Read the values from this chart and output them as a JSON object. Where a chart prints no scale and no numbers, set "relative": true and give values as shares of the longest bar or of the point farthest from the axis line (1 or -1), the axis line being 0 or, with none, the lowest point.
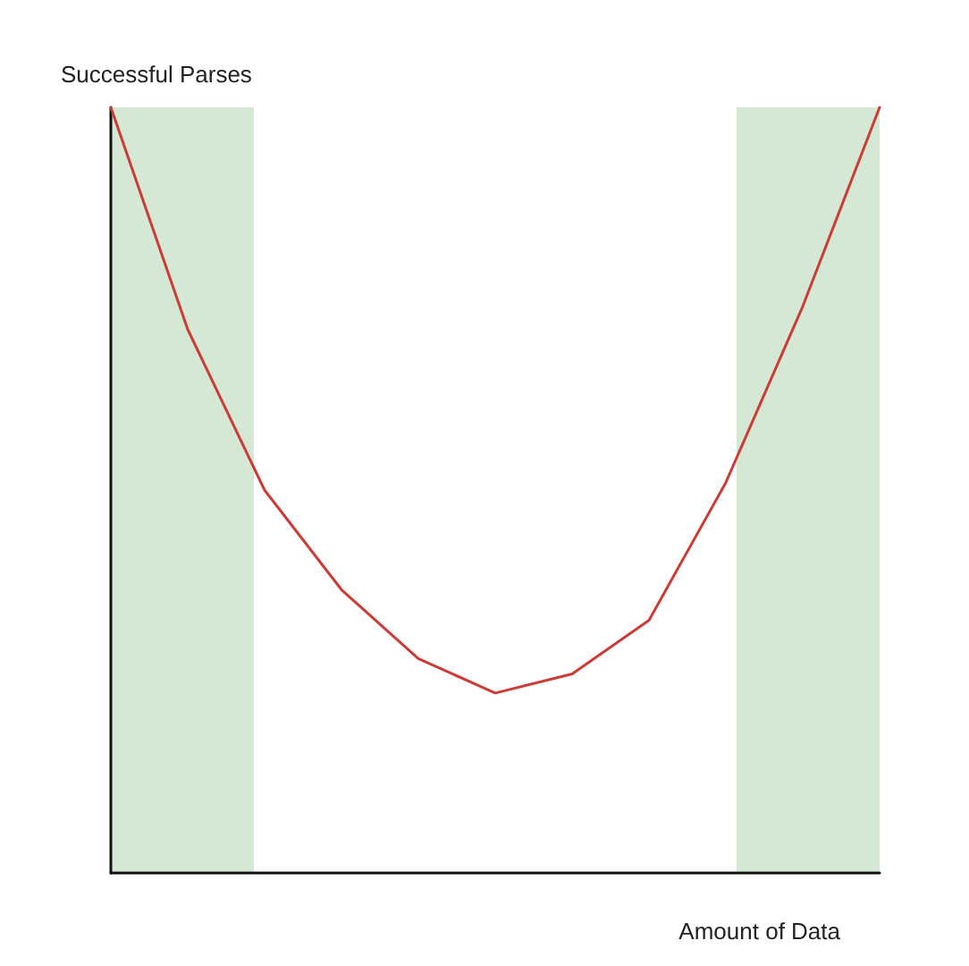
{
  "chart_data": {
    "type": "line",
    "xlabel": "Amount of Data",
    "ylabel": "Successful Parses",
    "relative": true,
    "categories": [
      null,
      null,
      null,
      null,
      null,
      null,
      null,
      null,
      null,
      null,
      null
    ],
    "marker": "none",
    "line_style": "solid",
    "series": [
      {
        "color": "#cc3b36",
        "values": [
          1,
          0.71,
          0.5,
          0.37,
          0.28,
          0.235,
          0.26,
          0.33,
          0.51,
          0.74,
          1
        ]
      }
    ]
  }
}
